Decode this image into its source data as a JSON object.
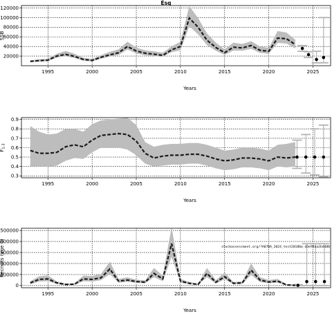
{
  "chart_data": [
    {
      "type": "line",
      "title": "Esq",
      "xlabel": "Years",
      "ylabel": "SSB",
      "xlim": [
        1992,
        2027
      ],
      "ylim": [
        0,
        125000
      ],
      "x_ticks": [
        1995,
        2000,
        2005,
        2010,
        2015,
        2020,
        2025
      ],
      "y_ticks": [
        20000,
        40000,
        60000,
        80000,
        100000,
        120000
      ],
      "y_tick_labels": [
        "20000",
        "40000",
        "60000",
        "80000",
        "100000",
        "120000"
      ],
      "grid": true,
      "colors": {
        "band": "#bdbdbd",
        "line": "#1a1a1a",
        "whisker": "#b3b3b3"
      },
      "x": [
        1993,
        1994,
        1995,
        1996,
        1997,
        1998,
        1999,
        2000,
        2001,
        2002,
        2003,
        2004,
        2005,
        2006,
        2007,
        2008,
        2009,
        2010,
        2011,
        2012,
        2013,
        2014,
        2015,
        2016,
        2017,
        2018,
        2019,
        2020,
        2021,
        2022,
        2023
      ],
      "estimate": [
        9000,
        10500,
        11500,
        20000,
        23500,
        19500,
        13000,
        11000,
        17500,
        22500,
        27000,
        40000,
        30500,
        26000,
        24000,
        21500,
        33000,
        40000,
        99000,
        80000,
        53000,
        38000,
        27000,
        38500,
        37000,
        42000,
        32000,
        30000,
        57500,
        56000,
        44000
      ],
      "lower": [
        7500,
        8500,
        9500,
        17000,
        19500,
        16000,
        10500,
        9000,
        14500,
        19000,
        22500,
        33500,
        25500,
        21500,
        20000,
        18500,
        28000,
        32000,
        82000,
        65000,
        43000,
        31000,
        22500,
        31500,
        31000,
        35000,
        26500,
        25000,
        47500,
        46000,
        36000
      ],
      "upper": [
        11000,
        13500,
        14500,
        25000,
        30500,
        25000,
        16500,
        14000,
        22000,
        29000,
        34000,
        50000,
        37500,
        32000,
        30000,
        27000,
        40000,
        50000,
        124000,
        99000,
        67000,
        48000,
        34000,
        48000,
        45000,
        51000,
        40000,
        37000,
        72000,
        69000,
        54000
      ],
      "projections": [
        {
          "x": 2023.8,
          "estimate": 36000,
          "lower": 30000,
          "upper": 42000
        },
        {
          "x": 2024.5,
          "estimate": 23000,
          "lower": 17000,
          "upper": 29000
        },
        {
          "x": 2025.4,
          "estimate": 13000,
          "lower": 6000,
          "upper": 30000
        },
        {
          "x": 2026.2,
          "estimate": 17000,
          "lower": 6000,
          "upper": 100000
        }
      ]
    },
    {
      "type": "line",
      "title": "",
      "xlabel": "Years",
      "ylabel": "F",
      "ylabel_subscript": "1-3",
      "xlim": [
        1992,
        2027
      ],
      "ylim": [
        0.28,
        0.92
      ],
      "x_ticks": [
        1995,
        2000,
        2005,
        2010,
        2015,
        2020,
        2025
      ],
      "y_ticks": [
        0.3,
        0.4,
        0.5,
        0.6,
        0.7,
        0.8,
        0.9
      ],
      "y_tick_labels": [
        "0.3",
        "0.4",
        "0.5",
        "0.6",
        "0.7",
        "0.8",
        "0.9"
      ],
      "grid": true,
      "colors": {
        "band": "#bdbdbd",
        "line": "#1a1a1a",
        "whisker": "#b3b3b3"
      },
      "x": [
        1993,
        1994,
        1995,
        1996,
        1997,
        1998,
        1999,
        2000,
        2001,
        2002,
        2003,
        2004,
        2005,
        2006,
        2007,
        2008,
        2009,
        2010,
        2011,
        2012,
        2013,
        2014,
        2015,
        2016,
        2017,
        2018,
        2019,
        2020,
        2021,
        2022,
        2023
      ],
      "estimate": [
        0.57,
        0.54,
        0.54,
        0.55,
        0.61,
        0.63,
        0.61,
        0.68,
        0.73,
        0.74,
        0.75,
        0.74,
        0.67,
        0.54,
        0.49,
        0.51,
        0.52,
        0.52,
        0.53,
        0.53,
        0.51,
        0.48,
        0.46,
        0.47,
        0.49,
        0.49,
        0.48,
        0.46,
        0.5,
        0.49,
        0.5
      ],
      "lower": [
        0.4,
        0.4,
        0.4,
        0.41,
        0.46,
        0.49,
        0.48,
        0.55,
        0.6,
        0.6,
        0.6,
        0.58,
        0.52,
        0.43,
        0.4,
        0.41,
        0.42,
        0.42,
        0.43,
        0.43,
        0.41,
        0.38,
        0.36,
        0.37,
        0.39,
        0.39,
        0.38,
        0.36,
        0.4,
        0.39,
        0.4
      ],
      "upper": [
        0.83,
        0.77,
        0.74,
        0.75,
        0.8,
        0.8,
        0.77,
        0.85,
        0.89,
        0.9,
        0.91,
        0.92,
        0.84,
        0.66,
        0.61,
        0.63,
        0.64,
        0.64,
        0.65,
        0.65,
        0.63,
        0.6,
        0.57,
        0.58,
        0.6,
        0.6,
        0.59,
        0.57,
        0.63,
        0.64,
        0.66
      ],
      "projections": [
        {
          "x": 2023.2,
          "estimate": 0.5,
          "lower": 0.38,
          "upper": 0.68
        },
        {
          "x": 2024.2,
          "estimate": 0.5,
          "lower": 0.33,
          "upper": 0.74
        },
        {
          "x": 2025.2,
          "estimate": 0.5,
          "lower": 0.31,
          "upper": 0.8
        },
        {
          "x": 2026.2,
          "estimate": 0.5,
          "lower": 0.29,
          "upper": 0.84
        }
      ]
    },
    {
      "type": "line",
      "title": "",
      "xlabel": "Years",
      "ylabel": "Recruits (age 0)",
      "xlim": [
        1992,
        2027
      ],
      "ylim": [
        -100000,
        2600000
      ],
      "x_ticks": [
        1995,
        2000,
        2005,
        2010,
        2015,
        2020,
        2025
      ],
      "y_ticks": [
        0,
        500000,
        1000000,
        1500000,
        2000000,
        2500000
      ],
      "y_tick_labels": [
        "0",
        "500000",
        "1000000",
        "1500000",
        "2000000",
        "2500000"
      ],
      "grid": true,
      "colors": {
        "band": "#bdbdbd",
        "line": "#1a1a1a",
        "whisker": "#b3b3b3"
      },
      "annotation": "stockassessment.org/?A07BA_2024_test20180a_d3e99aa2b4d88",
      "x": [
        1993,
        1994,
        1995,
        1996,
        1997,
        1998,
        1999,
        2000,
        2001,
        2002,
        2003,
        2004,
        2005,
        2006,
        2007,
        2008,
        2009,
        2010,
        2011,
        2012,
        2013,
        2014,
        2015,
        2016,
        2017,
        2018,
        2019,
        2020,
        2021,
        2022,
        2023
      ],
      "estimate": [
        120000,
        280000,
        300000,
        120000,
        50000,
        60000,
        300000,
        280000,
        350000,
        750000,
        200000,
        250000,
        180000,
        150000,
        550000,
        300000,
        1900000,
        200000,
        100000,
        50000,
        550000,
        150000,
        400000,
        100000,
        120000,
        700000,
        250000,
        160000,
        200000,
        30000,
        10000
      ],
      "lower": [
        60000,
        180000,
        200000,
        70000,
        25000,
        30000,
        200000,
        180000,
        240000,
        520000,
        130000,
        170000,
        120000,
        100000,
        380000,
        200000,
        1300000,
        130000,
        60000,
        25000,
        380000,
        90000,
        280000,
        60000,
        70000,
        480000,
        160000,
        100000,
        130000,
        10000,
        0
      ],
      "upper": [
        200000,
        420000,
        460000,
        190000,
        90000,
        100000,
        450000,
        430000,
        520000,
        1080000,
        300000,
        370000,
        270000,
        230000,
        800000,
        450000,
        2650000,
        300000,
        160000,
        90000,
        800000,
        240000,
        590000,
        160000,
        190000,
        1000000,
        380000,
        250000,
        300000,
        60000,
        40000
      ],
      "projections": [
        {
          "x": 2023.3,
          "estimate": 10000,
          "lower": 0,
          "upper": 40000
        },
        {
          "x": 2024.3,
          "estimate": 180000,
          "lower": 0,
          "upper": 1900000
        },
        {
          "x": 2025.3,
          "estimate": 180000,
          "lower": 0,
          "upper": 1900000
        },
        {
          "x": 2026.3,
          "estimate": 180000,
          "lower": 0,
          "upper": 1900000
        }
      ]
    }
  ]
}
